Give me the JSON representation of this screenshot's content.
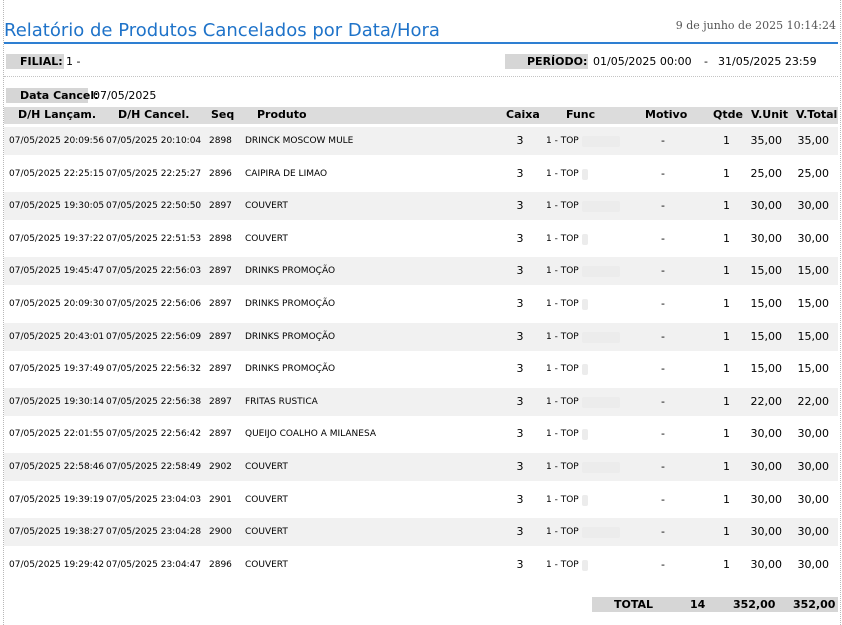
{
  "report": {
    "title": "Relatório de Produtos Cancelados por Data/Hora",
    "printed_at": "9 de junho de 2025 10:14:24"
  },
  "filters": {
    "filial_label": "FILIAL:",
    "filial_value": "1 -",
    "periodo_label": "PERÍODO:",
    "periodo_start": "01/05/2025 00:00",
    "periodo_sep": "-",
    "periodo_end": "31/05/2025 23:59"
  },
  "group": {
    "label": "Data Cancel:",
    "value": "07/05/2025"
  },
  "columns": {
    "lancam": "D/H Lançam.",
    "cancel": "D/H Cancel.",
    "seq": "Seq",
    "produto": "Produto",
    "caixa": "Caixa",
    "func": "Func",
    "motivo": "Motivo",
    "qtde": "Qtde",
    "vunit": "V.Unit",
    "vtotal": "V.Total"
  },
  "rows": [
    {
      "lancam": "07/05/2025 20:09:56",
      "cancel": "07/05/2025 20:10:04",
      "seq": "2898",
      "produto": "DRINCK MOSCOW MULE",
      "caixa": "3",
      "func": "1 - TOP",
      "motivo": "-",
      "qtde": "1",
      "vunit": "35,00",
      "vtotal": "35,00"
    },
    {
      "lancam": "07/05/2025 22:25:15",
      "cancel": "07/05/2025 22:25:27",
      "seq": "2896",
      "produto": "CAIPIRA DE LIMAO",
      "caixa": "3",
      "func": "1 - TOP",
      "motivo": "-",
      "qtde": "1",
      "vunit": "25,00",
      "vtotal": "25,00"
    },
    {
      "lancam": "07/05/2025 19:30:05",
      "cancel": "07/05/2025 22:50:50",
      "seq": "2897",
      "produto": "COUVERT",
      "caixa": "3",
      "func": "1 - TOP",
      "motivo": "-",
      "qtde": "1",
      "vunit": "30,00",
      "vtotal": "30,00"
    },
    {
      "lancam": "07/05/2025 19:37:22",
      "cancel": "07/05/2025 22:51:53",
      "seq": "2898",
      "produto": "COUVERT",
      "caixa": "3",
      "func": "1 - TOP",
      "motivo": "-",
      "qtde": "1",
      "vunit": "30,00",
      "vtotal": "30,00"
    },
    {
      "lancam": "07/05/2025 19:45:47",
      "cancel": "07/05/2025 22:56:03",
      "seq": "2897",
      "produto": "DRINKS PROMOÇÃO",
      "caixa": "3",
      "func": "1 - TOP",
      "motivo": "-",
      "qtde": "1",
      "vunit": "15,00",
      "vtotal": "15,00"
    },
    {
      "lancam": "07/05/2025 20:09:30",
      "cancel": "07/05/2025 22:56:06",
      "seq": "2897",
      "produto": "DRINKS PROMOÇÃO",
      "caixa": "3",
      "func": "1 - TOP",
      "motivo": "-",
      "qtde": "1",
      "vunit": "15,00",
      "vtotal": "15,00"
    },
    {
      "lancam": "07/05/2025 20:43:01",
      "cancel": "07/05/2025 22:56:09",
      "seq": "2897",
      "produto": "DRINKS PROMOÇÃO",
      "caixa": "3",
      "func": "1 - TOP",
      "motivo": "-",
      "qtde": "1",
      "vunit": "15,00",
      "vtotal": "15,00"
    },
    {
      "lancam": "07/05/2025 19:37:49",
      "cancel": "07/05/2025 22:56:32",
      "seq": "2897",
      "produto": "DRINKS PROMOÇÃO",
      "caixa": "3",
      "func": "1 - TOP",
      "motivo": "-",
      "qtde": "1",
      "vunit": "15,00",
      "vtotal": "15,00"
    },
    {
      "lancam": "07/05/2025 19:30:14",
      "cancel": "07/05/2025 22:56:38",
      "seq": "2897",
      "produto": "FRITAS RUSTICA",
      "caixa": "3",
      "func": "1 - TOP",
      "motivo": "-",
      "qtde": "1",
      "vunit": "22,00",
      "vtotal": "22,00"
    },
    {
      "lancam": "07/05/2025 22:01:55",
      "cancel": "07/05/2025 22:56:42",
      "seq": "2897",
      "produto": "QUEIJO COALHO A MILANESA",
      "caixa": "3",
      "func": "1 - TOP",
      "motivo": "-",
      "qtde": "1",
      "vunit": "30,00",
      "vtotal": "30,00"
    },
    {
      "lancam": "07/05/2025 22:58:46",
      "cancel": "07/05/2025 22:58:49",
      "seq": "2902",
      "produto": "COUVERT",
      "caixa": "3",
      "func": "1 - TOP",
      "motivo": "-",
      "qtde": "1",
      "vunit": "30,00",
      "vtotal": "30,00"
    },
    {
      "lancam": "07/05/2025 19:39:19",
      "cancel": "07/05/2025 23:04:03",
      "seq": "2901",
      "produto": "COUVERT",
      "caixa": "3",
      "func": "1 - TOP",
      "motivo": "-",
      "qtde": "1",
      "vunit": "30,00",
      "vtotal": "30,00"
    },
    {
      "lancam": "07/05/2025 19:38:27",
      "cancel": "07/05/2025 23:04:28",
      "seq": "2900",
      "produto": "COUVERT",
      "caixa": "3",
      "func": "1 - TOP",
      "motivo": "-",
      "qtde": "1",
      "vunit": "30,00",
      "vtotal": "30,00"
    },
    {
      "lancam": "07/05/2025 19:29:42",
      "cancel": "07/05/2025 23:04:47",
      "seq": "2896",
      "produto": "COUVERT",
      "caixa": "3",
      "func": "1 - TOP",
      "motivo": "-",
      "qtde": "1",
      "vunit": "30,00",
      "vtotal": "30,00"
    }
  ],
  "totals": {
    "label": "TOTAL",
    "qtde": "14",
    "vunit": "352,00",
    "vtotal": "352,00"
  }
}
